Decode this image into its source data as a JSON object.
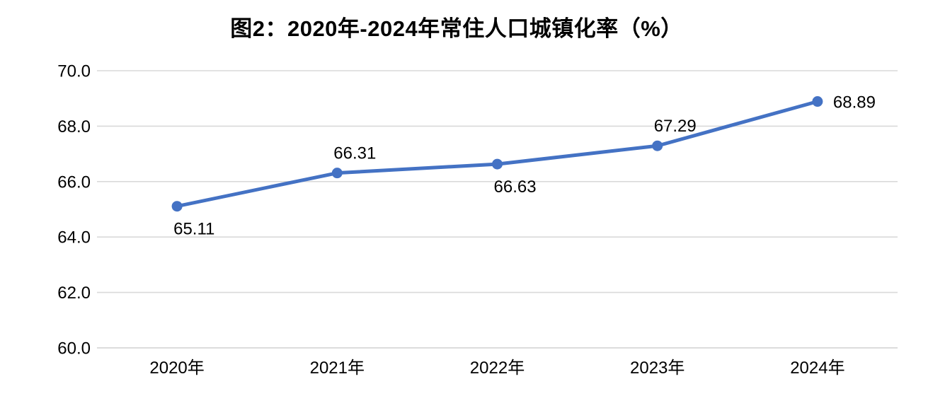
{
  "chart_data": {
    "type": "line",
    "title": "图2：2020年-2024年常住人口城镇化率（%）",
    "categories": [
      "2020年",
      "2021年",
      "2022年",
      "2023年",
      "2024年"
    ],
    "values": [
      65.11,
      66.31,
      66.63,
      67.29,
      68.89
    ],
    "data_labels": [
      "65.11",
      "66.31",
      "66.63",
      "67.29",
      "68.89"
    ],
    "label_positions": [
      "below",
      "above",
      "below",
      "above",
      "right"
    ],
    "xlabel": "",
    "ylabel": "",
    "ylim": [
      60,
      70
    ],
    "ytick_step": 2,
    "ytick_labels": [
      "60.0",
      "62.0",
      "64.0",
      "66.0",
      "68.0",
      "70.0"
    ],
    "grid": true,
    "legend": false,
    "colors": {
      "line": "#4472C4",
      "marker": "#4472C4",
      "gridline": "#D9D9D9",
      "axis_line": "#D0D0D0",
      "text": "#000000",
      "title": "#000000",
      "background": "#FFFFFF"
    }
  }
}
